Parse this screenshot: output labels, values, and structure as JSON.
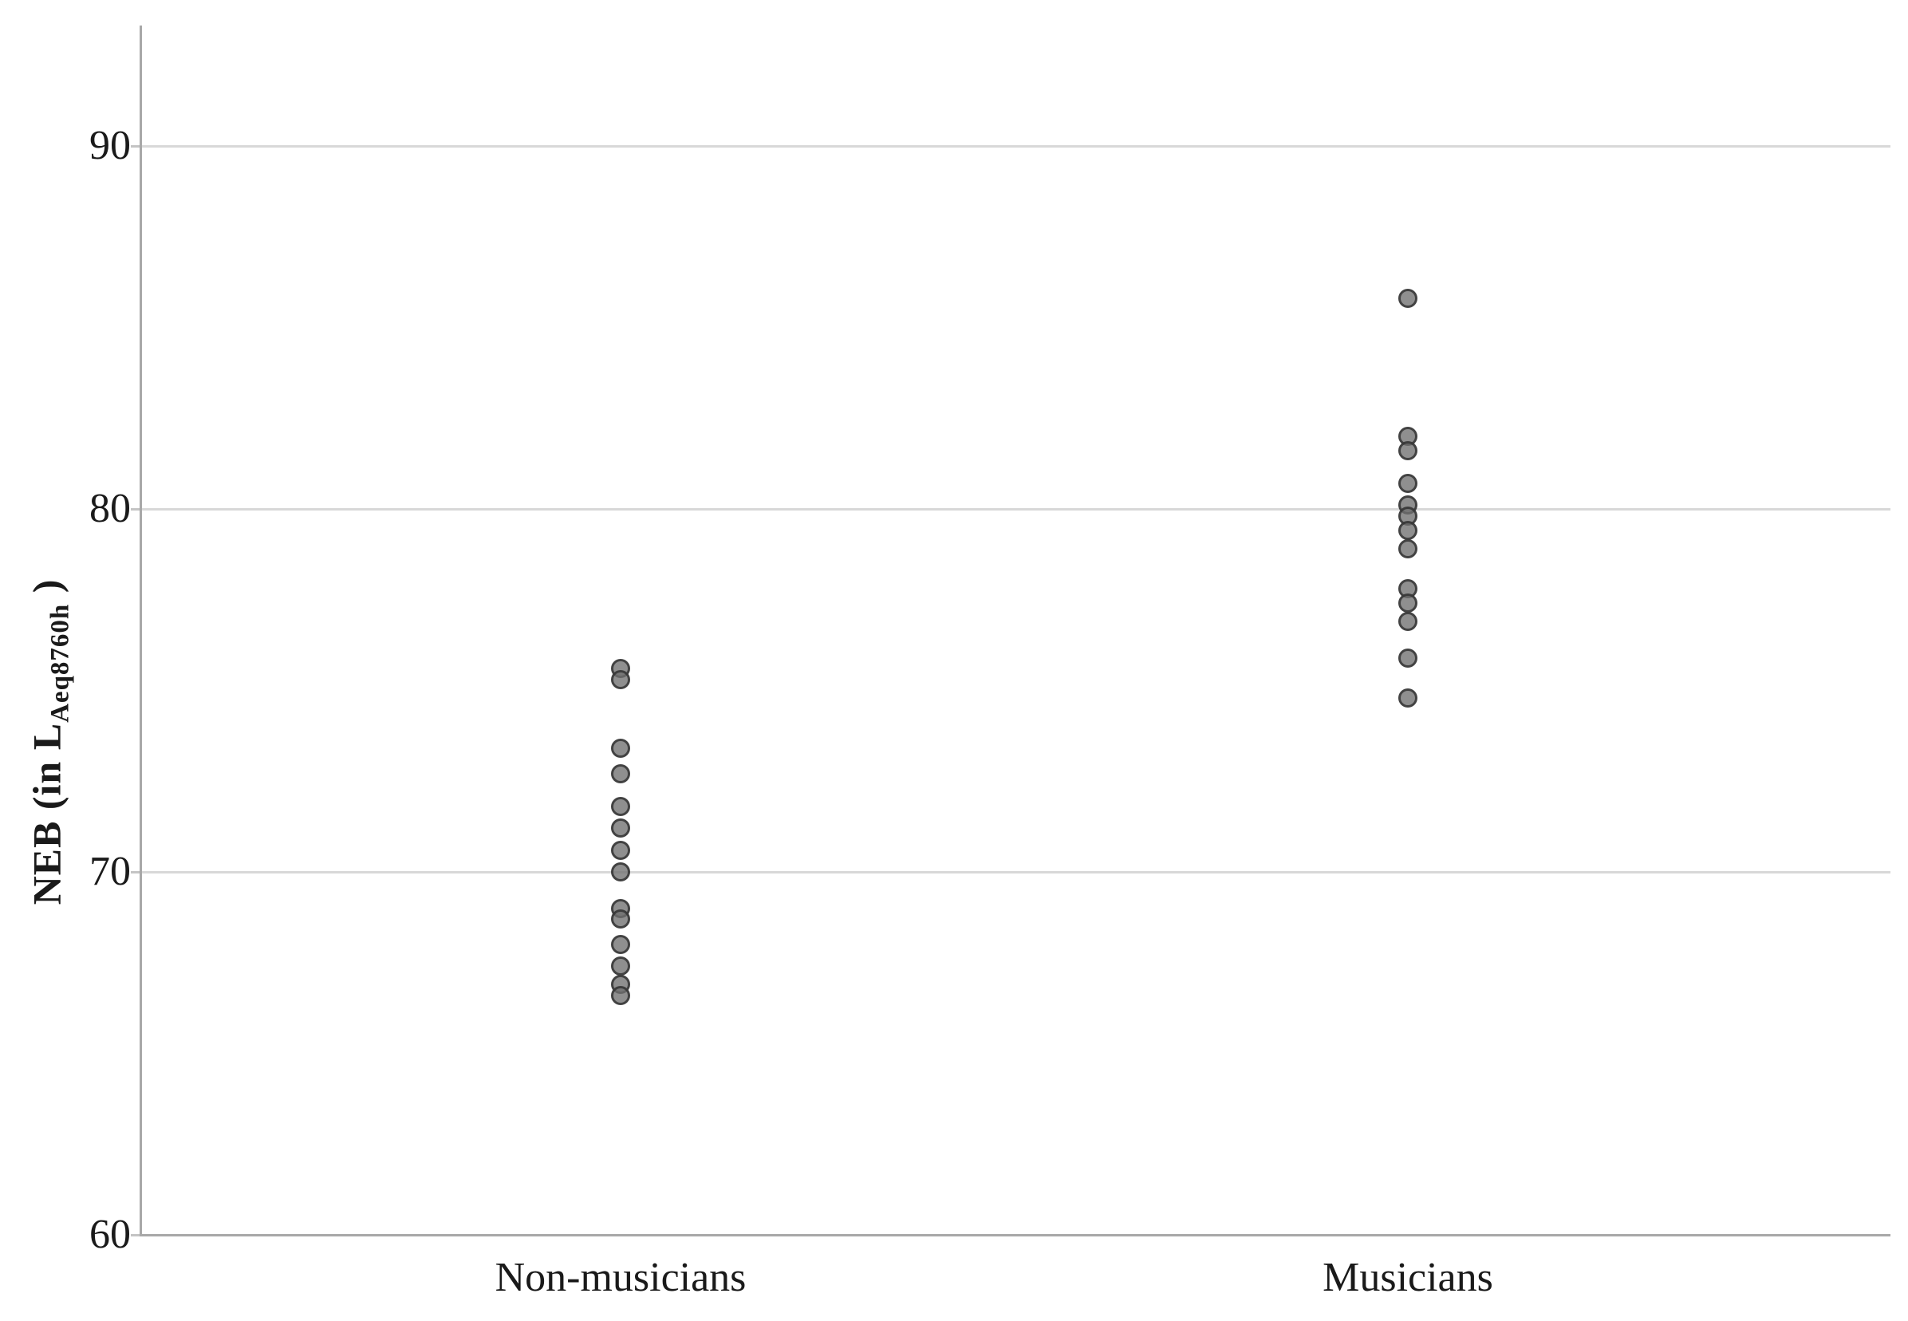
{
  "figure": {
    "background": "#ffffff",
    "axis_color": "#a8a8a8",
    "grid_color": "#d8d8d8",
    "tick_color": "#c4c4c4",
    "text_color": "#1a1a1a",
    "dot_fill": "rgba(112,112,112,0.78)",
    "dot_border": "rgba(45,45,45,0.78)"
  },
  "ylabel": {
    "prefix": "NEB (in L",
    "subscript": "Aeq8760h",
    "suffix": " )"
  },
  "chart_data": {
    "type": "scatter",
    "subtype": "strip-plot",
    "title": "",
    "xlabel": "",
    "ylabel": "NEB (in L Aeq8760h )",
    "ylabel_subscript": "Aeq8760h",
    "categories": [
      "Non-musicians",
      "Musicians"
    ],
    "y_ticks": [
      60,
      70,
      80,
      90
    ],
    "ylim": [
      60,
      93.4
    ],
    "grid": "horizontal-only",
    "legend": "none",
    "marker": "filled-circle",
    "series": [
      {
        "name": "Non-musicians",
        "values": [
          75.6,
          75.3,
          73.4,
          72.7,
          71.8,
          71.2,
          70.6,
          70.0,
          69.0,
          68.7,
          68.0,
          67.4,
          66.9,
          66.6
        ]
      },
      {
        "name": "Musicians",
        "values": [
          85.8,
          82.0,
          81.6,
          80.7,
          80.1,
          79.8,
          79.4,
          78.9,
          77.8,
          77.4,
          76.9,
          75.9,
          74.8
        ]
      }
    ]
  }
}
